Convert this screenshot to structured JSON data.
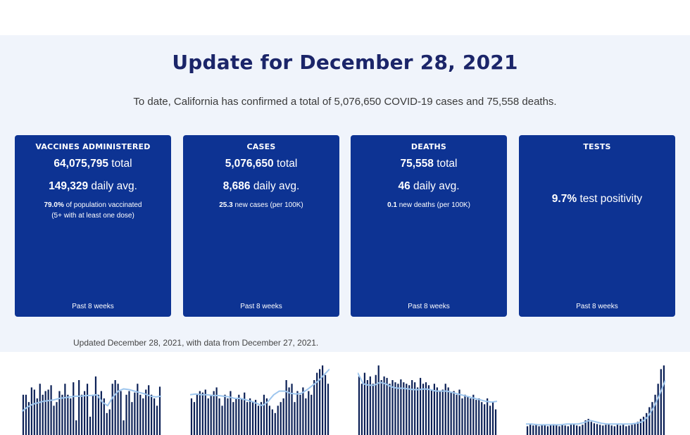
{
  "header": {
    "title": "Update for December 28, 2021",
    "summary": "To date, California has confirmed a total of 5,076,650 COVID-19 cases and 75,558 deaths."
  },
  "cards": [
    {
      "title": "VACCINES ADMINISTERED",
      "total_value": "64,075,795",
      "total_suffix": "total",
      "daily_value": "149,329",
      "daily_suffix": "daily avg.",
      "note_value": "79.0%",
      "note_suffix": "of population vaccinated",
      "note_line2": "(5+ with at least one dose)",
      "footer": "Past 8 weeks"
    },
    {
      "title": "CASES",
      "total_value": "5,076,650",
      "total_suffix": "total",
      "daily_value": "8,686",
      "daily_suffix": "daily avg.",
      "note_value": "25.3",
      "note_suffix": "new cases (per 100K)",
      "footer": "Past 8 weeks"
    },
    {
      "title": "DEATHS",
      "total_value": "75,558",
      "total_suffix": "total",
      "daily_value": "46",
      "daily_suffix": "daily avg.",
      "note_value": "0.1",
      "note_suffix": "new deaths (per 100K)",
      "footer": "Past 8 weeks"
    },
    {
      "title": "TESTS",
      "positivity_value": "9.7%",
      "positivity_suffix": "test positivity",
      "footer": "Past 8 weeks"
    }
  ],
  "footer": {
    "updated": "Updated December 28, 2021, with data from December 27, 2021."
  },
  "colors": {
    "panel_bg": "#f0f4fb",
    "card_bg": "#0d3393",
    "bar": "#0a1f55",
    "line": "#9ec6ee",
    "title": "#1b2569"
  },
  "chart_data": [
    {
      "type": "bar",
      "name": "vaccines",
      "bars": [
        0.55,
        0.55,
        0.45,
        0.65,
        0.62,
        0.5,
        0.7,
        0.55,
        0.6,
        0.62,
        0.68,
        0.4,
        0.45,
        0.6,
        0.55,
        0.7,
        0.55,
        0.5,
        0.72,
        0.2,
        0.75,
        0.55,
        0.6,
        0.7,
        0.25,
        0.55,
        0.8,
        0.55,
        0.6,
        0.5,
        0.3,
        0.35,
        0.7,
        0.75,
        0.7,
        0.6,
        0.2,
        0.55,
        0.6,
        0.45,
        0.58,
        0.7,
        0.55,
        0.5,
        0.62,
        0.68,
        0.55,
        0.5,
        0.4,
        0.66
      ],
      "line": [
        0.32,
        0.38,
        0.42,
        0.44,
        0.46,
        0.47,
        0.48,
        0.5,
        0.51,
        0.52,
        0.53,
        0.53,
        0.54,
        0.54,
        0.55,
        0.45,
        0.4,
        0.52,
        0.6,
        0.63,
        0.62,
        0.6,
        0.58,
        0.56,
        0.53,
        0.52,
        0.53
      ]
    },
    {
      "type": "bar",
      "name": "cases",
      "bars": [
        0.5,
        0.45,
        0.55,
        0.6,
        0.58,
        0.62,
        0.5,
        0.55,
        0.6,
        0.65,
        0.5,
        0.4,
        0.55,
        0.5,
        0.6,
        0.45,
        0.5,
        0.55,
        0.5,
        0.58,
        0.45,
        0.5,
        0.45,
        0.48,
        0.4,
        0.45,
        0.55,
        0.5,
        0.4,
        0.35,
        0.3,
        0.4,
        0.45,
        0.5,
        0.75,
        0.65,
        0.7,
        0.45,
        0.6,
        0.55,
        0.65,
        0.5,
        0.6,
        0.55,
        0.75,
        0.85,
        0.9,
        0.95,
        0.82,
        0.7
      ],
      "line": [
        0.55,
        0.56,
        0.55,
        0.55,
        0.54,
        0.54,
        0.53,
        0.52,
        0.5,
        0.5,
        0.48,
        0.46,
        0.43,
        0.4,
        0.46,
        0.55,
        0.6,
        0.6,
        0.57,
        0.56,
        0.57,
        0.62,
        0.68,
        0.74,
        0.82,
        0.9
      ]
    },
    {
      "type": "bar",
      "name": "deaths",
      "bars": [
        0.8,
        0.7,
        0.85,
        0.75,
        0.8,
        0.7,
        0.82,
        0.95,
        0.75,
        0.8,
        0.78,
        0.7,
        0.75,
        0.72,
        0.7,
        0.76,
        0.72,
        0.7,
        0.68,
        0.75,
        0.72,
        0.65,
        0.78,
        0.7,
        0.72,
        0.68,
        0.62,
        0.7,
        0.65,
        0.6,
        0.62,
        0.7,
        0.65,
        0.58,
        0.6,
        0.55,
        0.62,
        0.5,
        0.55,
        0.52,
        0.5,
        0.55,
        0.48,
        0.5,
        0.45,
        0.42,
        0.5,
        0.4,
        0.45,
        0.35
      ],
      "line": [
        0.85,
        0.7,
        0.68,
        0.68,
        0.72,
        0.7,
        0.66,
        0.64,
        0.64,
        0.63,
        0.62,
        0.62,
        0.63,
        0.62,
        0.6,
        0.6,
        0.6,
        0.58,
        0.56,
        0.54,
        0.52,
        0.5,
        0.48,
        0.46,
        0.45,
        0.46
      ]
    },
    {
      "type": "bar",
      "name": "tests",
      "bars": [
        0.12,
        0.14,
        0.13,
        0.15,
        0.12,
        0.14,
        0.13,
        0.12,
        0.14,
        0.15,
        0.13,
        0.12,
        0.14,
        0.13,
        0.12,
        0.14,
        0.15,
        0.13,
        0.12,
        0.14,
        0.2,
        0.22,
        0.18,
        0.16,
        0.15,
        0.14,
        0.13,
        0.14,
        0.15,
        0.13,
        0.12,
        0.14,
        0.13,
        0.14,
        0.12,
        0.13,
        0.14,
        0.15,
        0.18,
        0.22,
        0.25,
        0.3,
        0.38,
        0.45,
        0.55,
        0.7,
        0.9,
        0.95
      ],
      "line": [
        0.15,
        0.15,
        0.14,
        0.14,
        0.14,
        0.14,
        0.14,
        0.15,
        0.15,
        0.15,
        0.17,
        0.2,
        0.18,
        0.16,
        0.15,
        0.15,
        0.15,
        0.15,
        0.15,
        0.16,
        0.18,
        0.25,
        0.38,
        0.55,
        0.75
      ]
    }
  ]
}
